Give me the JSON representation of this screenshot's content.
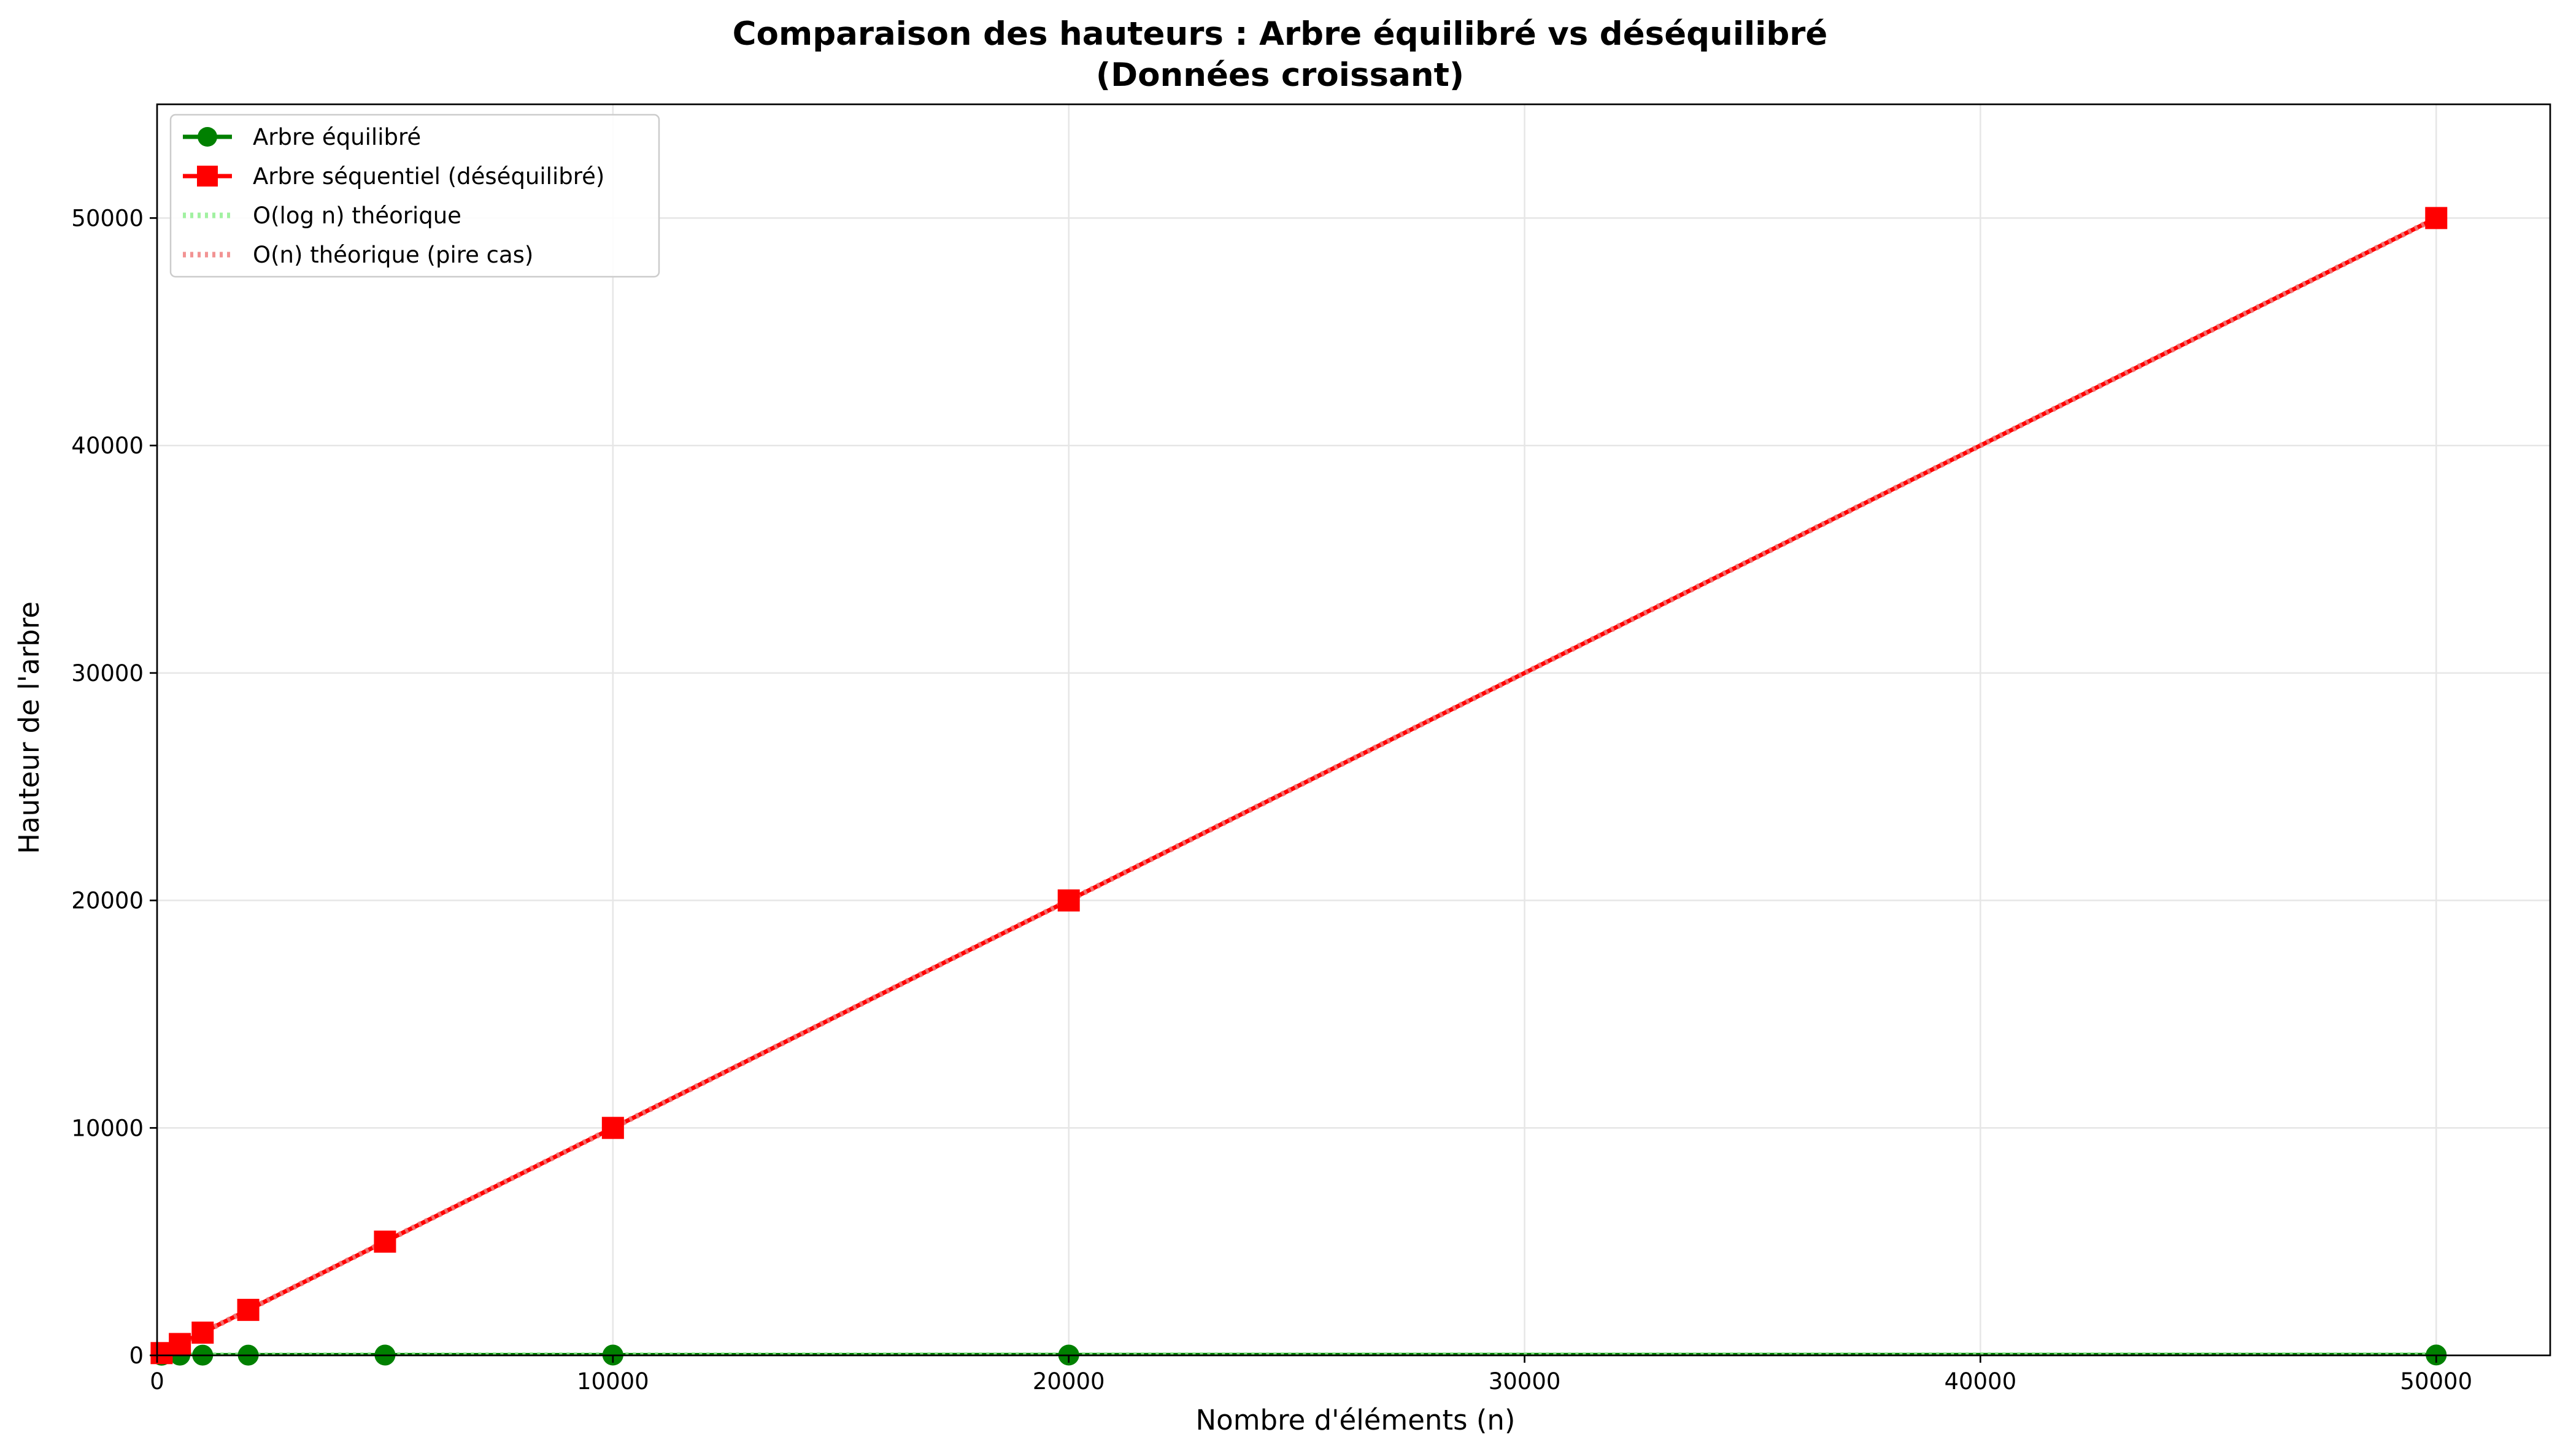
{
  "chart_data": {
    "type": "line",
    "title": "Comparaison des hauteurs : Arbre équilibré vs déséquilibré",
    "subtitle": "(Données croissant)",
    "xlabel": "Nombre d'éléments (n)",
    "ylabel": "Hauteur de l'arbre",
    "xlim": [
      0,
      52500
    ],
    "ylim": [
      0,
      55000
    ],
    "x_ticks": [
      0,
      10000,
      20000,
      30000,
      40000,
      50000
    ],
    "x_tick_labels": [
      "0",
      "10000",
      "20000",
      "30000",
      "40000",
      "50000"
    ],
    "y_ticks": [
      0,
      10000,
      20000,
      30000,
      40000,
      50000
    ],
    "y_tick_labels": [
      "0",
      "10000",
      "20000",
      "30000",
      "40000",
      "50000"
    ],
    "grid": true,
    "legend_position": "top-left",
    "x": [
      100,
      500,
      1000,
      2000,
      5000,
      10000,
      20000,
      50000
    ],
    "series": [
      {
        "name": "Arbre équilibré",
        "values": [
          7,
          9,
          10,
          11,
          13,
          14,
          15,
          16
        ],
        "color": "#008000",
        "marker": "circle",
        "line_style": "solid"
      },
      {
        "name": "Arbre séquentiel (déséquilibré)",
        "values": [
          100,
          500,
          1000,
          2000,
          5000,
          10000,
          20000,
          50000
        ],
        "color": "#ff0000",
        "marker": "square",
        "line_style": "solid"
      },
      {
        "name": "O(log n) théorique",
        "values": [
          6.6,
          9,
          10,
          11,
          12.3,
          13.3,
          14.3,
          15.6
        ],
        "color": "#90ee90",
        "marker": "none",
        "line_style": "dotted"
      },
      {
        "name": "O(n) théorique (pire cas)",
        "values": [
          100,
          500,
          1000,
          2000,
          5000,
          10000,
          20000,
          50000
        ],
        "color": "#f08080",
        "marker": "none",
        "line_style": "dotted"
      }
    ]
  }
}
